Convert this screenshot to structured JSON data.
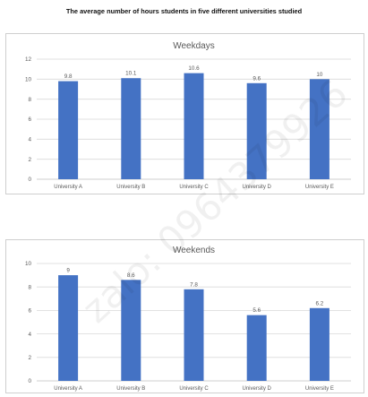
{
  "page_title": "The average number of hours students in five different universities studied",
  "watermark_text": "zalo: 0964379926",
  "colors": {
    "bar": "#4472c4",
    "grid": "#d9d9d9",
    "axis": "#bfbfbf",
    "text": "#595959",
    "title": "#595959"
  },
  "chart_data": [
    {
      "type": "bar",
      "title": "Weekdays",
      "categories": [
        "University A",
        "University B",
        "University C",
        "University D",
        "University E"
      ],
      "values": [
        9.8,
        10.1,
        10.6,
        9.6,
        10
      ],
      "value_labels": [
        "9.8",
        "10.1",
        "10.6",
        "9.6",
        "10"
      ],
      "y_ticks": [
        0,
        2,
        4,
        6,
        8,
        10,
        12
      ],
      "ylim": [
        0,
        12
      ],
      "grid": true,
      "legend": "none"
    },
    {
      "type": "bar",
      "title": "Weekends",
      "categories": [
        "University A",
        "University B",
        "University C",
        "University D",
        "University E"
      ],
      "values": [
        9,
        8.6,
        7.8,
        5.6,
        6.2
      ],
      "value_labels": [
        "9",
        "8.6",
        "7.8",
        "5.6",
        "6.2"
      ],
      "y_ticks": [
        0,
        2,
        4,
        6,
        8,
        10
      ],
      "ylim": [
        0,
        10
      ],
      "grid": true,
      "legend": "none"
    }
  ]
}
